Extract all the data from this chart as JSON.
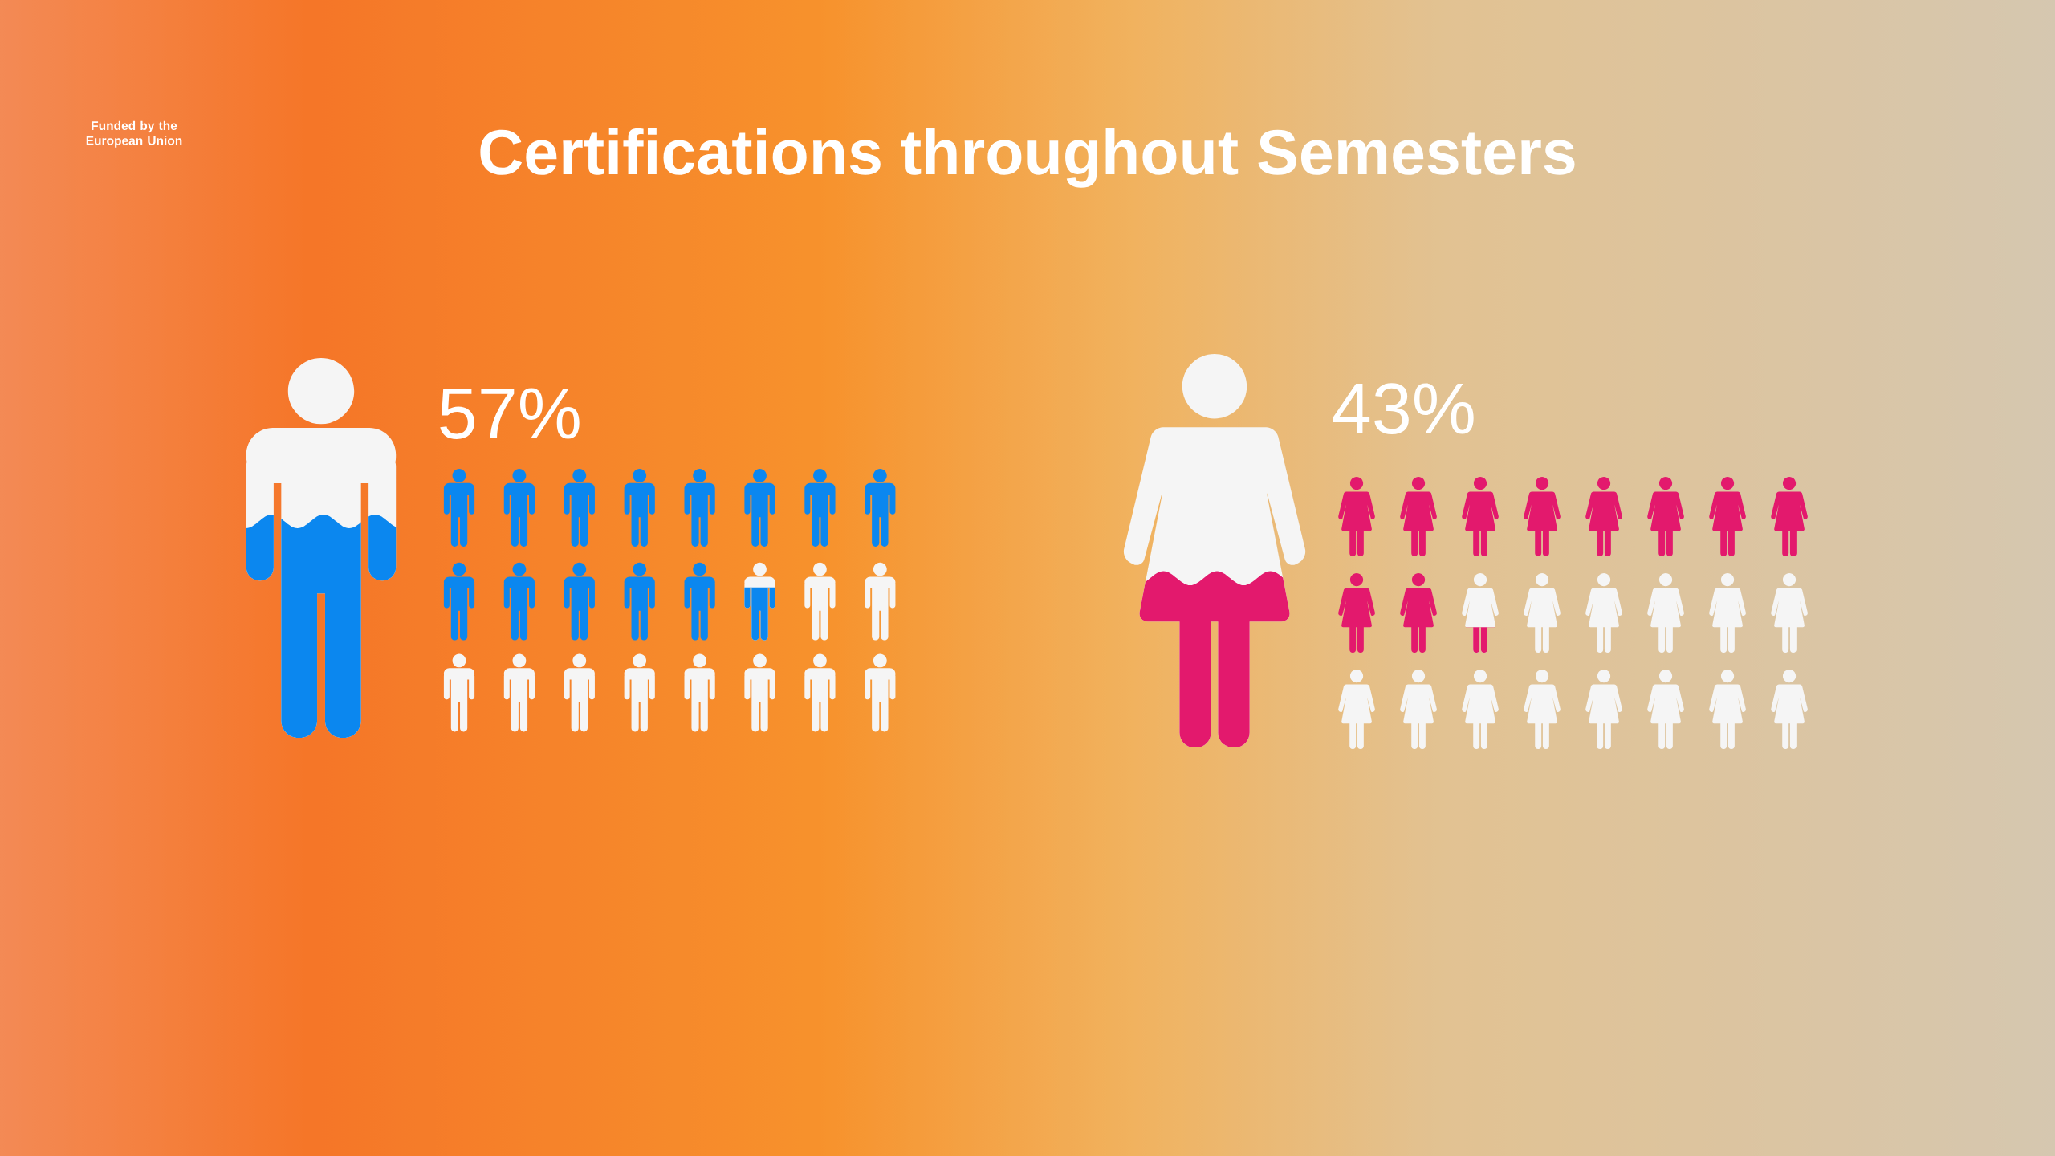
{
  "chart_data": {
    "type": "other",
    "title": "Certifications throughout Semesters",
    "categories": [
      null,
      null
    ],
    "values": [
      57,
      43
    ],
    "value_labels": [
      "57%",
      "43%"
    ],
    "colors": [
      "#0b87ef",
      "#e3196d"
    ],
    "annotations": [
      "Funded by the European Union"
    ]
  }
}
